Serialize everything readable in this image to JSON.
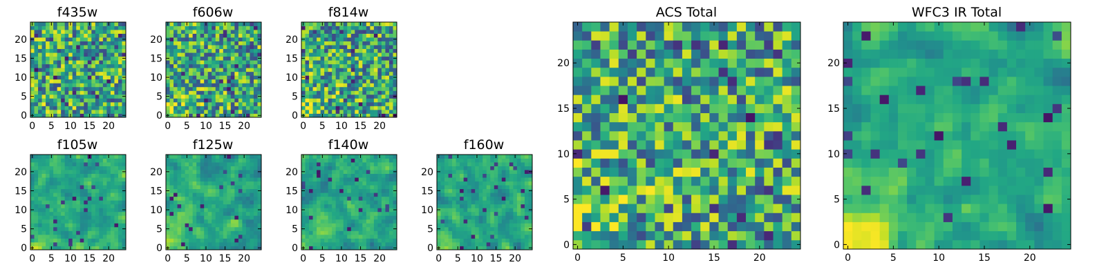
{
  "chart_data": [
    {
      "type": "heatmap",
      "title": "f435w",
      "grid_size": 25,
      "seed": 11,
      "smooth": 0,
      "corner_bright": 0.5,
      "xticks": [
        0,
        5,
        10,
        15,
        20
      ],
      "yticks": [
        0,
        5,
        10,
        15,
        20
      ],
      "colormap": "viridis"
    },
    {
      "type": "heatmap",
      "title": "f606w",
      "grid_size": 25,
      "seed": 23,
      "smooth": 0,
      "corner_bright": 0.9,
      "xticks": [
        0,
        5,
        10,
        15,
        20
      ],
      "yticks": [
        0,
        5,
        10,
        15,
        20
      ],
      "colormap": "viridis"
    },
    {
      "type": "heatmap",
      "title": "f814w",
      "grid_size": 25,
      "seed": 37,
      "smooth": 0,
      "corner_bright": 1.0,
      "xticks": [
        0,
        5,
        10,
        15,
        20
      ],
      "yticks": [
        0,
        5,
        10,
        15,
        20
      ],
      "colormap": "viridis"
    },
    {
      "type": "heatmap",
      "title": "f105w",
      "grid_size": 25,
      "seed": 41,
      "smooth": 1,
      "corner_bright": 1.0,
      "xticks": [
        0,
        5,
        10,
        15,
        20
      ],
      "yticks": [
        0,
        5,
        10,
        15,
        20
      ],
      "colormap": "viridis"
    },
    {
      "type": "heatmap",
      "title": "f125w",
      "grid_size": 25,
      "seed": 53,
      "smooth": 1,
      "corner_bright": 0.9,
      "xticks": [
        0,
        5,
        10,
        15,
        20
      ],
      "yticks": [
        0,
        5,
        10,
        15,
        20
      ],
      "colormap": "viridis"
    },
    {
      "type": "heatmap",
      "title": "f140w",
      "grid_size": 25,
      "seed": 67,
      "smooth": 1,
      "corner_bright": 0.8,
      "xticks": [
        0,
        5,
        10,
        15,
        20
      ],
      "yticks": [
        0,
        5,
        10,
        15,
        20
      ],
      "colormap": "viridis"
    },
    {
      "type": "heatmap",
      "title": "f160w",
      "grid_size": 25,
      "seed": 79,
      "smooth": 1,
      "corner_bright": 1.0,
      "xticks": [
        0,
        5,
        10,
        15,
        20
      ],
      "yticks": [
        0,
        5,
        10,
        15,
        20
      ],
      "colormap": "viridis"
    },
    {
      "type": "heatmap",
      "title": "ACS Total",
      "grid_size": 25,
      "seed": 97,
      "smooth": 0,
      "corner_bright": 1.2,
      "xticks": [
        0,
        5,
        10,
        15,
        20
      ],
      "yticks": [
        0,
        5,
        10,
        15,
        20
      ],
      "colormap": "viridis"
    },
    {
      "type": "heatmap",
      "title": "WFC3 IR Total",
      "grid_size": 25,
      "seed": 113,
      "smooth": 1,
      "corner_bright": 1.6,
      "xticks": [
        0,
        5,
        10,
        15,
        20
      ],
      "yticks": [
        0,
        5,
        10,
        15,
        20
      ],
      "colormap": "viridis"
    }
  ]
}
